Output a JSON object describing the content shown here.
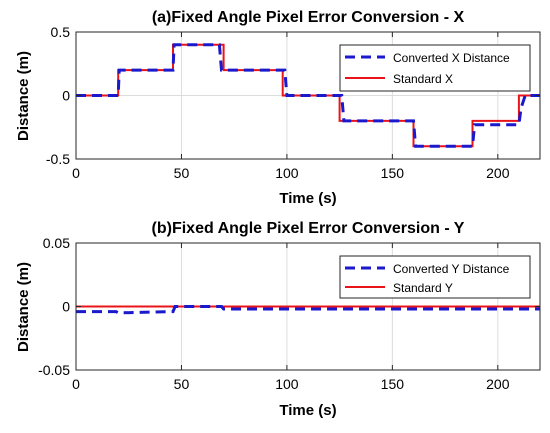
{
  "chart_data": [
    {
      "type": "line",
      "title": "(a)Fixed Angle Pixel Error Conversion - X",
      "xlabel": "Time (s)",
      "ylabel": "Distance (m)",
      "xlim": [
        0,
        220
      ],
      "ylim": [
        -0.5,
        0.5
      ],
      "xticks": [
        0,
        50,
        100,
        150,
        200
      ],
      "xtick_labels": [
        "0",
        "50",
        "100",
        "150",
        "200"
      ],
      "yticks": [
        -0.5,
        0,
        0.5
      ],
      "ytick_labels": [
        "-0.5",
        "0",
        "0.5"
      ],
      "grid": true,
      "legend_position": "top-right",
      "series": [
        {
          "name": "Converted X Distance",
          "style": "dashed",
          "color": "#1a1acc",
          "x": [
            0,
            20,
            20.5,
            46,
            46.5,
            68,
            69,
            99,
            100,
            126,
            127,
            160,
            161,
            188,
            189,
            210,
            211,
            213,
            220
          ],
          "y": [
            0,
            0,
            0.2,
            0.2,
            0.4,
            0.4,
            0.2,
            0.2,
            0,
            0,
            -0.2,
            -0.2,
            -0.4,
            -0.4,
            -0.23,
            -0.23,
            -0.1,
            0,
            0
          ]
        },
        {
          "name": "Standard X",
          "style": "solid",
          "color": "#e8141a",
          "x": [
            0,
            20,
            20,
            46,
            46,
            70,
            70,
            98,
            98,
            125,
            125,
            160,
            160,
            188,
            188,
            210,
            210,
            220
          ],
          "y": [
            0,
            0,
            0.2,
            0.2,
            0.4,
            0.4,
            0.2,
            0.2,
            0,
            0,
            -0.2,
            -0.2,
            -0.4,
            -0.4,
            -0.2,
            -0.2,
            0,
            0
          ]
        }
      ]
    },
    {
      "type": "line",
      "title": "(b)Fixed Angle Pixel Error Conversion - Y",
      "xlabel": "Time (s)",
      "ylabel": "Distance (m)",
      "xlim": [
        0,
        220
      ],
      "ylim": [
        -0.05,
        0.05
      ],
      "xticks": [
        0,
        50,
        100,
        150,
        200
      ],
      "xtick_labels": [
        "0",
        "50",
        "100",
        "150",
        "200"
      ],
      "yticks": [
        -0.05,
        0,
        0.05
      ],
      "ytick_labels": [
        "-0.05",
        "0",
        "0.05"
      ],
      "grid": true,
      "legend_position": "top-right",
      "series": [
        {
          "name": "Converted Y Distance",
          "style": "dashed",
          "color": "#1a1acc",
          "x": [
            0,
            19,
            20,
            46,
            47,
            69,
            70,
            220
          ],
          "y": [
            -0.004,
            -0.004,
            -0.005,
            -0.004,
            0,
            0,
            -0.002,
            -0.002
          ]
        },
        {
          "name": "Standard Y",
          "style": "solid",
          "color": "#e8141a",
          "x": [
            0,
            220
          ],
          "y": [
            0,
            0
          ]
        }
      ]
    }
  ]
}
